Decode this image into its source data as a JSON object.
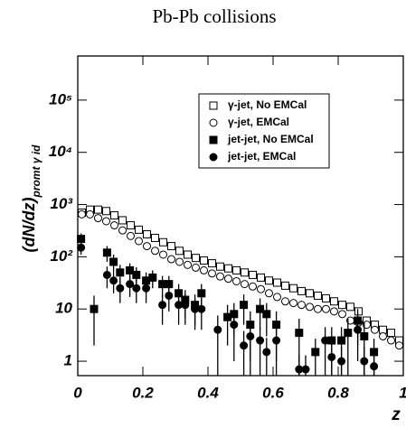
{
  "chart_data": {
    "type": "scatter",
    "title": "Pb-Pb collisions",
    "x_label": "z",
    "y_label": "(dN/dz)",
    "y_label_sub": "promt γ id",
    "log_y": true,
    "legend": "upper right",
    "xlim": [
      0,
      1
    ],
    "ylim": [
      0.53,
      700000
    ],
    "xticks": [
      0,
      0.2,
      0.4,
      0.6,
      0.8,
      1
    ],
    "yticks": [
      1,
      10,
      {
        "value": 100,
        "label": "10²"
      },
      {
        "value": 1000,
        "label": "10³"
      },
      {
        "value": 10000,
        "label": "10⁴"
      },
      {
        "value": 100000,
        "label": "10⁵"
      }
    ],
    "series": [
      {
        "name": "γ-jet, No EMCal",
        "marker": "open-square",
        "color": "#000000",
        "x": [
          0.0125,
          0.0375,
          0.0625,
          0.0875,
          0.1125,
          0.1375,
          0.1625,
          0.1875,
          0.2125,
          0.2375,
          0.2625,
          0.2875,
          0.3125,
          0.3375,
          0.3625,
          0.3875,
          0.4125,
          0.4375,
          0.4625,
          0.4875,
          0.5125,
          0.5375,
          0.5625,
          0.5875,
          0.6125,
          0.6375,
          0.6625,
          0.6875,
          0.7125,
          0.7375,
          0.7625,
          0.7875,
          0.8125,
          0.8375,
          0.8625,
          0.8875,
          0.9125,
          0.9375,
          0.9625,
          0.9875
        ],
        "values": [
          700,
          800,
          800,
          750,
          620,
          500,
          400,
          330,
          270,
          230,
          190,
          160,
          130,
          110,
          95,
          85,
          75,
          65,
          60,
          55,
          50,
          45,
          40,
          35,
          32,
          28,
          25,
          22,
          20,
          18,
          16,
          14,
          12,
          11,
          9,
          6,
          5,
          4,
          3.5,
          2.5
        ]
      },
      {
        "name": "γ-jet, EMCal",
        "marker": "open-circle",
        "color": "#000000",
        "x": [
          0.0125,
          0.0375,
          0.0625,
          0.0875,
          0.1125,
          0.1375,
          0.1625,
          0.1875,
          0.2125,
          0.2375,
          0.2625,
          0.2875,
          0.3125,
          0.3375,
          0.3625,
          0.3875,
          0.4125,
          0.4375,
          0.4625,
          0.4875,
          0.5125,
          0.5375,
          0.5625,
          0.5875,
          0.6125,
          0.6375,
          0.6625,
          0.6875,
          0.7125,
          0.7375,
          0.7625,
          0.7875,
          0.8125,
          0.8375,
          0.8625,
          0.8875,
          0.9125,
          0.9375,
          0.9625,
          0.9875
        ],
        "values": [
          650,
          650,
          550,
          480,
          400,
          320,
          250,
          200,
          160,
          130,
          110,
          90,
          80,
          70,
          62,
          55,
          48,
          42,
          38,
          34,
          30,
          27,
          24,
          20,
          17,
          14,
          13,
          12,
          11,
          10,
          10,
          9,
          8,
          6,
          5.5,
          5,
          4,
          3,
          2.5,
          2
        ]
      },
      {
        "name": "jet-jet, No EMCal",
        "marker": "filled-square",
        "color": "#000000",
        "x": [
          0.01,
          0.05,
          0.09,
          0.11,
          0.13,
          0.16,
          0.18,
          0.21,
          0.23,
          0.26,
          0.28,
          0.31,
          0.33,
          0.36,
          0.38,
          0.46,
          0.48,
          0.51,
          0.53,
          0.56,
          0.58,
          0.61,
          0.68,
          0.73,
          0.78,
          0.81,
          0.83,
          0.86,
          0.88,
          0.91
        ],
        "values": [
          220,
          10,
          120,
          80,
          50,
          55,
          45,
          35,
          40,
          30,
          30,
          20,
          15,
          12,
          20,
          7,
          8,
          12,
          5,
          10,
          8,
          5,
          3.5,
          1.5,
          2.5,
          2.5,
          3.5,
          6,
          3,
          1.5
        ],
        "errors": [
          60,
          8,
          40,
          30,
          20,
          20,
          18,
          15,
          15,
          13,
          13,
          10,
          8,
          7,
          10,
          5,
          5,
          7,
          4,
          6,
          5,
          4,
          3,
          1.2,
          2,
          2,
          3,
          4,
          2.5,
          1.2
        ]
      },
      {
        "name": "jet-jet, EMCal",
        "marker": "filled-circle",
        "color": "#000000",
        "x": [
          0.01,
          0.09,
          0.11,
          0.13,
          0.16,
          0.18,
          0.21,
          0.26,
          0.28,
          0.31,
          0.33,
          0.36,
          0.38,
          0.43,
          0.48,
          0.51,
          0.53,
          0.56,
          0.58,
          0.61,
          0.68,
          0.7,
          0.76,
          0.78,
          0.81,
          0.86,
          0.88,
          0.91
        ],
        "values": [
          150,
          45,
          35,
          25,
          30,
          25,
          25,
          12,
          18,
          12,
          12,
          10,
          10,
          4,
          5,
          2,
          3,
          2.5,
          1.5,
          2.5,
          0.7,
          0.7,
          2.5,
          1.2,
          1,
          4,
          1,
          0.8
        ],
        "errors": [
          40,
          20,
          15,
          12,
          13,
          12,
          12,
          7,
          9,
          7,
          7,
          6,
          6,
          3.5,
          4,
          1.8,
          2.5,
          2,
          1.3,
          2,
          0.6,
          0.6,
          2,
          1,
          0.9,
          3,
          0.9,
          0.7
        ]
      }
    ]
  }
}
